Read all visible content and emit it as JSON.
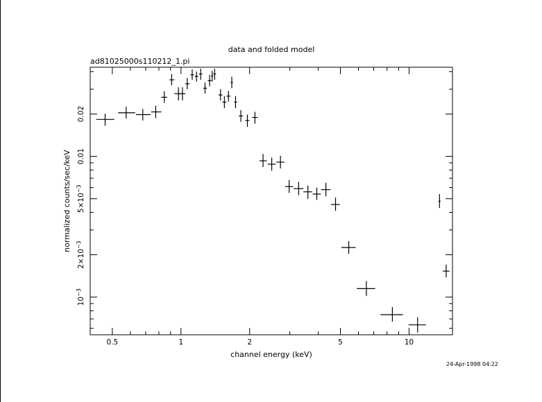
{
  "chart_data": {
    "type": "scatter",
    "title": "data and folded model",
    "subtitle": "ad81025000s110212_1.pi",
    "xlabel": "channel energy (keV)",
    "ylabel": "normalized counts/sec/keV",
    "xscale": "log",
    "yscale": "log",
    "xlim": [
      0.4,
      15.5
    ],
    "ylim": [
      0.00054,
      0.043
    ],
    "x_ticks": [
      {
        "value": 0.5,
        "label": "0.5"
      },
      {
        "value": 1,
        "label": "1"
      },
      {
        "value": 2,
        "label": "2"
      },
      {
        "value": 5,
        "label": "5"
      },
      {
        "value": 10,
        "label": "10"
      }
    ],
    "y_ticks": [
      {
        "value": 0.02,
        "label": "0.02"
      },
      {
        "value": 0.01,
        "label": "0.01"
      },
      {
        "value": 0.005,
        "label": "5×10",
        "exp": "−3"
      },
      {
        "value": 0.002,
        "label": "2×10",
        "exp": "−3"
      },
      {
        "value": 0.001,
        "label": "10",
        "exp": "−3"
      }
    ],
    "points": [
      {
        "x": 0.465,
        "x_lo": 0.425,
        "x_hi": 0.51,
        "y": 0.0183,
        "y_lo": 0.0165,
        "y_hi": 0.0201
      },
      {
        "x": 0.575,
        "x_lo": 0.53,
        "x_hi": 0.63,
        "y": 0.0204,
        "y_lo": 0.0186,
        "y_hi": 0.0225
      },
      {
        "x": 0.68,
        "x_lo": 0.635,
        "x_hi": 0.735,
        "y": 0.0198,
        "y_lo": 0.018,
        "y_hi": 0.0217
      },
      {
        "x": 0.775,
        "x_lo": 0.74,
        "x_hi": 0.82,
        "y": 0.0207,
        "y_lo": 0.0187,
        "y_hi": 0.0229
      },
      {
        "x": 0.845,
        "x_lo": 0.82,
        "x_hi": 0.87,
        "y": 0.0263,
        "y_lo": 0.024,
        "y_hi": 0.029
      },
      {
        "x": 0.91,
        "x_lo": 0.89,
        "x_hi": 0.935,
        "y": 0.035,
        "y_lo": 0.032,
        "y_hi": 0.0385
      },
      {
        "x": 0.975,
        "x_lo": 0.935,
        "x_hi": 1.015,
        "y": 0.0279,
        "y_lo": 0.025,
        "y_hi": 0.031
      },
      {
        "x": 1.015,
        "x_lo": 0.985,
        "x_hi": 1.045,
        "y": 0.0279,
        "y_lo": 0.025,
        "y_hi": 0.031
      },
      {
        "x": 1.065,
        "x_lo": 1.045,
        "x_hi": 1.09,
        "y": 0.0328,
        "y_lo": 0.03,
        "y_hi": 0.036
      },
      {
        "x": 1.12,
        "x_lo": 1.1,
        "x_hi": 1.14,
        "y": 0.038,
        "y_lo": 0.035,
        "y_hi": 0.0415
      },
      {
        "x": 1.17,
        "x_lo": 1.15,
        "x_hi": 1.19,
        "y": 0.037,
        "y_lo": 0.034,
        "y_hi": 0.04
      },
      {
        "x": 1.22,
        "x_lo": 1.2,
        "x_hi": 1.24,
        "y": 0.0385,
        "y_lo": 0.035,
        "y_hi": 0.042
      },
      {
        "x": 1.275,
        "x_lo": 1.25,
        "x_hi": 1.3,
        "y": 0.0305,
        "y_lo": 0.028,
        "y_hi": 0.0335
      },
      {
        "x": 1.335,
        "x_lo": 1.31,
        "x_hi": 1.36,
        "y": 0.0345,
        "y_lo": 0.0315,
        "y_hi": 0.038
      },
      {
        "x": 1.37,
        "x_lo": 1.355,
        "x_hi": 1.385,
        "y": 0.0372,
        "y_lo": 0.034,
        "y_hi": 0.0405
      },
      {
        "x": 1.405,
        "x_lo": 1.385,
        "x_hi": 1.425,
        "y": 0.0385,
        "y_lo": 0.035,
        "y_hi": 0.042
      },
      {
        "x": 1.49,
        "x_lo": 1.46,
        "x_hi": 1.52,
        "y": 0.0273,
        "y_lo": 0.025,
        "y_hi": 0.03
      },
      {
        "x": 1.55,
        "x_lo": 1.52,
        "x_hi": 1.58,
        "y": 0.0243,
        "y_lo": 0.022,
        "y_hi": 0.0268
      },
      {
        "x": 1.615,
        "x_lo": 1.585,
        "x_hi": 1.645,
        "y": 0.0268,
        "y_lo": 0.0245,
        "y_hi": 0.0292
      },
      {
        "x": 1.67,
        "x_lo": 1.65,
        "x_hi": 1.69,
        "y": 0.0335,
        "y_lo": 0.0305,
        "y_hi": 0.0368
      },
      {
        "x": 1.735,
        "x_lo": 1.71,
        "x_hi": 1.76,
        "y": 0.0243,
        "y_lo": 0.022,
        "y_hi": 0.0268
      },
      {
        "x": 1.83,
        "x_lo": 1.79,
        "x_hi": 1.87,
        "y": 0.0194,
        "y_lo": 0.0176,
        "y_hi": 0.0213
      },
      {
        "x": 1.955,
        "x_lo": 1.915,
        "x_hi": 1.995,
        "y": 0.018,
        "y_lo": 0.0162,
        "y_hi": 0.0198
      },
      {
        "x": 2.11,
        "x_lo": 2.05,
        "x_hi": 2.17,
        "y": 0.0189,
        "y_lo": 0.0171,
        "y_hi": 0.0207
      },
      {
        "x": 2.29,
        "x_lo": 2.21,
        "x_hi": 2.38,
        "y": 0.0093,
        "y_lo": 0.0084,
        "y_hi": 0.0104
      },
      {
        "x": 2.5,
        "x_lo": 2.4,
        "x_hi": 2.6,
        "y": 0.0088,
        "y_lo": 0.0079,
        "y_hi": 0.0098
      },
      {
        "x": 2.73,
        "x_lo": 2.62,
        "x_hi": 2.84,
        "y": 0.0091,
        "y_lo": 0.0082,
        "y_hi": 0.0101
      },
      {
        "x": 2.98,
        "x_lo": 2.86,
        "x_hi": 3.1,
        "y": 0.0061,
        "y_lo": 0.0055,
        "y_hi": 0.0068
      },
      {
        "x": 3.28,
        "x_lo": 3.12,
        "x_hi": 3.44,
        "y": 0.0059,
        "y_lo": 0.0053,
        "y_hi": 0.0066
      },
      {
        "x": 3.6,
        "x_lo": 3.44,
        "x_hi": 3.76,
        "y": 0.0056,
        "y_lo": 0.005,
        "y_hi": 0.0062
      },
      {
        "x": 3.94,
        "x_lo": 3.78,
        "x_hi": 4.1,
        "y": 0.0054,
        "y_lo": 0.0049,
        "y_hi": 0.006
      },
      {
        "x": 4.32,
        "x_lo": 4.12,
        "x_hi": 4.52,
        "y": 0.0058,
        "y_lo": 0.0052,
        "y_hi": 0.0065
      },
      {
        "x": 4.76,
        "x_lo": 4.55,
        "x_hi": 4.97,
        "y": 0.00455,
        "y_lo": 0.0041,
        "y_hi": 0.0051
      },
      {
        "x": 5.44,
        "x_lo": 5.05,
        "x_hi": 5.83,
        "y": 0.00225,
        "y_lo": 0.00203,
        "y_hi": 0.0025
      },
      {
        "x": 6.5,
        "x_lo": 5.9,
        "x_hi": 7.1,
        "y": 0.00115,
        "y_lo": 0.00102,
        "y_hi": 0.0013
      },
      {
        "x": 8.45,
        "x_lo": 7.5,
        "x_hi": 9.4,
        "y": 0.00075,
        "y_lo": 0.00067,
        "y_hi": 0.00085
      },
      {
        "x": 10.9,
        "x_lo": 9.95,
        "x_hi": 11.85,
        "y": 0.000635,
        "y_lo": 0.00056,
        "y_hi": 0.00072
      },
      {
        "x": 13.6,
        "x_lo": 13.45,
        "x_hi": 13.75,
        "y": 0.0048,
        "y_lo": 0.0043,
        "y_hi": 0.0054
      },
      {
        "x": 14.55,
        "x_lo": 14.05,
        "x_hi": 15.05,
        "y": 0.00153,
        "y_lo": 0.00138,
        "y_hi": 0.0017
      }
    ]
  },
  "timestamp": "24-Apr-1998 04:22"
}
